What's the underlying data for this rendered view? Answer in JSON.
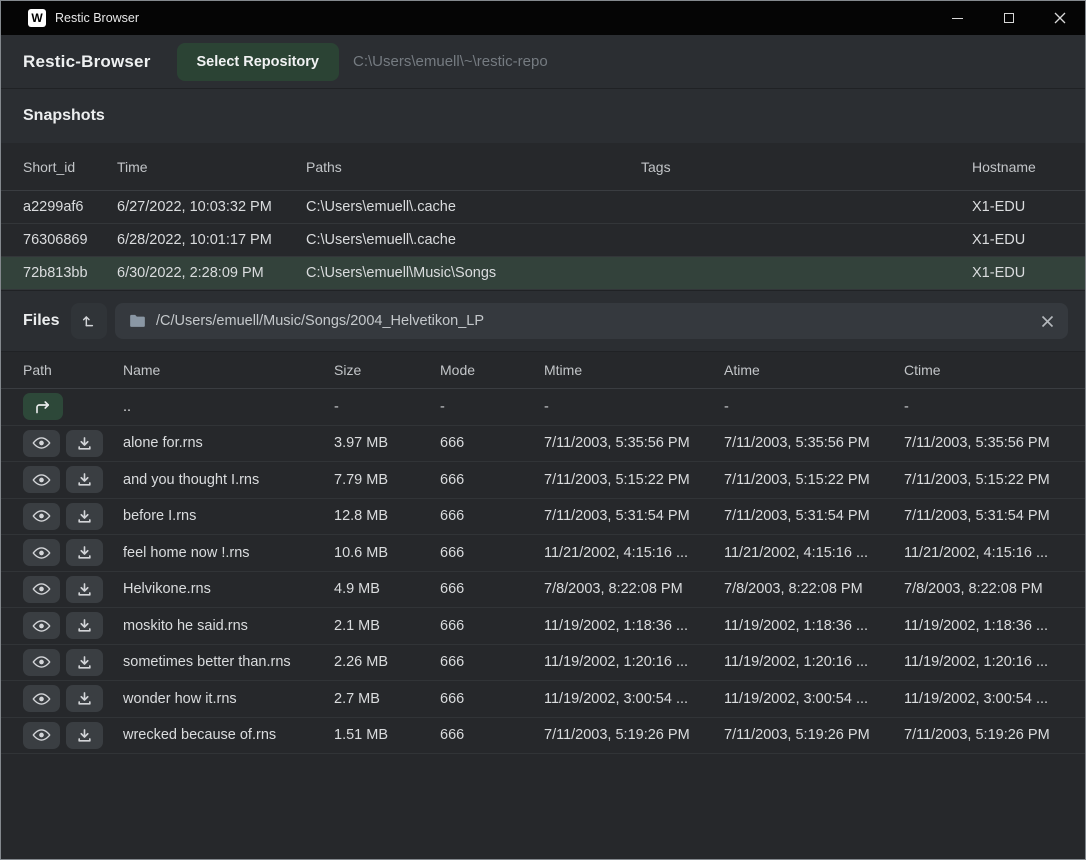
{
  "window": {
    "title": "Restic Browser",
    "logo_letter": "W"
  },
  "toolbar": {
    "app_name": "Restic-Browser",
    "select_repo_label": "Select Repository",
    "repo_path": "C:\\Users\\emuell\\~\\restic-repo"
  },
  "snapshots": {
    "title": "Snapshots",
    "columns": [
      "Short_id",
      "Time",
      "Paths",
      "Tags",
      "Hostname"
    ],
    "rows": [
      {
        "short_id": "a2299af6",
        "time": "6/27/2022, 10:03:32 PM",
        "paths": "C:\\Users\\emuell\\.cache",
        "tags": "",
        "hostname": "X1-EDU",
        "selected": false
      },
      {
        "short_id": "76306869",
        "time": "6/28/2022, 10:01:17 PM",
        "paths": "C:\\Users\\emuell\\.cache",
        "tags": "",
        "hostname": "X1-EDU",
        "selected": false
      },
      {
        "short_id": "72b813bb",
        "time": "6/30/2022, 2:28:09 PM",
        "paths": "C:\\Users\\emuell\\Music\\Songs",
        "tags": "",
        "hostname": "X1-EDU",
        "selected": true
      }
    ]
  },
  "files": {
    "title": "Files",
    "path_value": "/C/Users/emuell/Music/Songs/2004_Helvetikon_LP",
    "columns": [
      "Path",
      "Name",
      "Size",
      "Mode",
      "Mtime",
      "Atime",
      "Ctime"
    ],
    "parent_row": {
      "name": "..",
      "size": "-",
      "mode": "-",
      "mtime": "-",
      "atime": "-",
      "ctime": "-"
    },
    "rows": [
      {
        "name": "alone for.rns",
        "size": "3.97 MB",
        "mode": "666",
        "mtime": "7/11/2003, 5:35:56 PM",
        "atime": "7/11/2003, 5:35:56 PM",
        "ctime": "7/11/2003, 5:35:56 PM"
      },
      {
        "name": "and you thought I.rns",
        "size": "7.79 MB",
        "mode": "666",
        "mtime": "7/11/2003, 5:15:22 PM",
        "atime": "7/11/2003, 5:15:22 PM",
        "ctime": "7/11/2003, 5:15:22 PM"
      },
      {
        "name": "before I.rns",
        "size": "12.8 MB",
        "mode": "666",
        "mtime": "7/11/2003, 5:31:54 PM",
        "atime": "7/11/2003, 5:31:54 PM",
        "ctime": "7/11/2003, 5:31:54 PM"
      },
      {
        "name": "feel home now !.rns",
        "size": "10.6 MB",
        "mode": "666",
        "mtime": "11/21/2002, 4:15:16 ...",
        "atime": "11/21/2002, 4:15:16 ...",
        "ctime": "11/21/2002, 4:15:16 ..."
      },
      {
        "name": "Helvikone.rns",
        "size": "4.9 MB",
        "mode": "666",
        "mtime": "7/8/2003, 8:22:08 PM",
        "atime": "7/8/2003, 8:22:08 PM",
        "ctime": "7/8/2003, 8:22:08 PM"
      },
      {
        "name": "moskito he said.rns",
        "size": "2.1 MB",
        "mode": "666",
        "mtime": "11/19/2002, 1:18:36 ...",
        "atime": "11/19/2002, 1:18:36 ...",
        "ctime": "11/19/2002, 1:18:36 ..."
      },
      {
        "name": "sometimes better than.rns",
        "size": "2.26 MB",
        "mode": "666",
        "mtime": "11/19/2002, 1:20:16 ...",
        "atime": "11/19/2002, 1:20:16 ...",
        "ctime": "11/19/2002, 1:20:16 ..."
      },
      {
        "name": "wonder how it.rns",
        "size": "2.7 MB",
        "mode": "666",
        "mtime": "11/19/2002, 3:00:54 ...",
        "atime": "11/19/2002, 3:00:54 ...",
        "ctime": "11/19/2002, 3:00:54 ..."
      },
      {
        "name": "wrecked because of.rns",
        "size": "1.51 MB",
        "mode": "666",
        "mtime": "7/11/2003, 5:19:26 PM",
        "atime": "7/11/2003, 5:19:26 PM",
        "ctime": "7/11/2003, 5:19:26 PM"
      }
    ]
  },
  "colors": {
    "accent_green_button": "#2b4334",
    "selected_row_green": "#33423b",
    "titlebar_black": "#050505",
    "panel_gray": "#2b2e32",
    "background_gray": "#26282b"
  }
}
